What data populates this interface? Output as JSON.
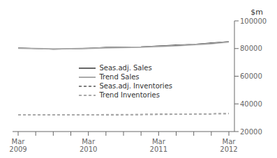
{
  "chart_data": {
    "type": "line",
    "ylabel": "$m",
    "categories": [
      "Mar\n2009",
      null,
      null,
      null,
      "Mar\n2010",
      null,
      null,
      null,
      "Mar\n2011",
      null,
      null,
      null,
      "Mar\n2012"
    ],
    "series": [
      {
        "name": "Seas.adj. Sales",
        "color": "#000000",
        "line_style": "solid",
        "values": [
          80500,
          80000,
          79500,
          79800,
          80200,
          80800,
          81000,
          81200,
          81800,
          82500,
          83000,
          84000,
          85000
        ]
      },
      {
        "name": "Trend Sales",
        "color": "#aaaaaa",
        "line_style": "solid",
        "values": [
          80200,
          80000,
          79800,
          79900,
          80100,
          80500,
          80800,
          81000,
          81500,
          82000,
          82800,
          83500,
          84800
        ]
      },
      {
        "name": "Seas.adj. Inventories",
        "color": "#000000",
        "line_style": "dashed",
        "values": [
          32000,
          32000,
          32200,
          32100,
          32000,
          32100,
          32200,
          32300,
          32500,
          32600,
          32700,
          32800,
          33000
        ]
      },
      {
        "name": "Trend Inventories",
        "color": "#aaaaaa",
        "line_style": "dashed",
        "values": [
          32100,
          32050,
          32100,
          32100,
          32100,
          32150,
          32200,
          32300,
          32400,
          32550,
          32650,
          32750,
          32900
        ]
      }
    ],
    "ylim": [
      20000,
      100000
    ],
    "yticks": [
      20000,
      40000,
      60000,
      80000,
      100000
    ],
    "grid": false,
    "legend": "center"
  }
}
